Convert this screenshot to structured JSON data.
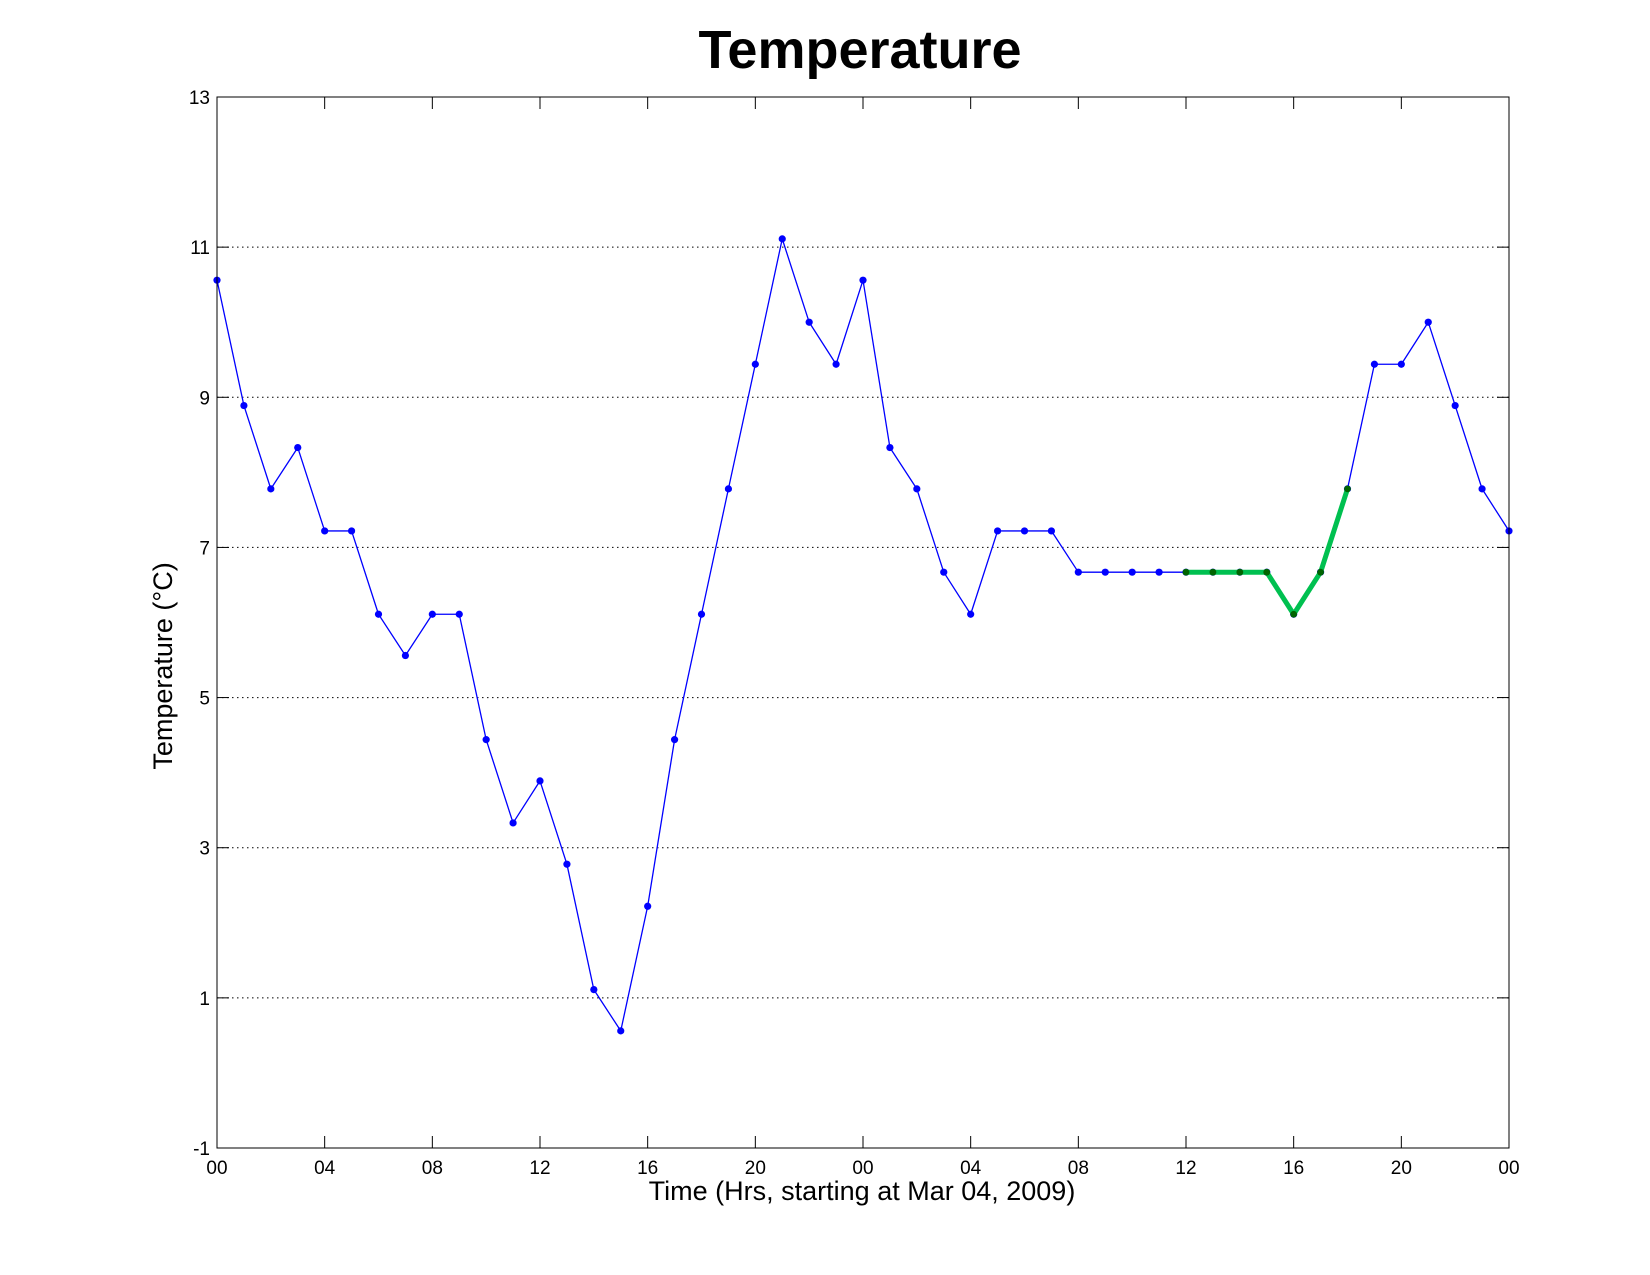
{
  "chart_data": {
    "type": "line",
    "title": "Temperature",
    "xlabel": "Time (Hrs, starting at Mar 04, 2009)",
    "ylabel": "Temperature (°C)",
    "xlim": [
      0,
      48
    ],
    "ylim": [
      -1,
      13
    ],
    "y_ticks": [
      -1,
      1,
      3,
      5,
      7,
      9,
      11,
      13
    ],
    "y_tick_labels": [
      "-1",
      "1",
      "3",
      "5",
      "7",
      "9",
      "11",
      "13"
    ],
    "x_ticks": [
      0,
      4,
      8,
      12,
      16,
      20,
      24,
      28,
      32,
      36,
      40,
      44,
      48
    ],
    "x_tick_labels": [
      "00",
      "04",
      "08",
      "12",
      "16",
      "20",
      "00",
      "04",
      "08",
      "12",
      "16",
      "20",
      "00"
    ],
    "grid": "horizontal dotted",
    "x": [
      0,
      1,
      2,
      3,
      4,
      5,
      6,
      7,
      8,
      9,
      10,
      11,
      12,
      13,
      14,
      15,
      16,
      17,
      18,
      19,
      20,
      21,
      22,
      23,
      24,
      25,
      26,
      27,
      28,
      29,
      30,
      31,
      32,
      33,
      34,
      35,
      36,
      37,
      38,
      39,
      40,
      41,
      42,
      43,
      44,
      45,
      46,
      47,
      48
    ],
    "series": [
      {
        "color": "#0000ff",
        "values": [
          10.56,
          8.89,
          7.78,
          8.33,
          7.22,
          7.22,
          6.11,
          5.56,
          6.11,
          6.11,
          4.44,
          3.33,
          3.89,
          2.78,
          1.11,
          0.56,
          2.22,
          4.44,
          6.11,
          7.78,
          9.44,
          11.11,
          10.0,
          9.44,
          10.56,
          8.33,
          7.78,
          6.67,
          6.11,
          7.22,
          7.22,
          7.22,
          6.67,
          6.67,
          6.67,
          6.67,
          6.67,
          6.67,
          6.67,
          6.67,
          6.11,
          6.67,
          7.78,
          9.44,
          9.44,
          10.0,
          8.89,
          7.78,
          7.22
        ]
      },
      {
        "color": "#00c050",
        "marker_color": "#006400",
        "x": [
          36,
          37,
          38,
          39,
          40,
          41,
          42
        ],
        "values": [
          6.67,
          6.67,
          6.67,
          6.67,
          6.11,
          6.67,
          7.78
        ]
      }
    ]
  }
}
